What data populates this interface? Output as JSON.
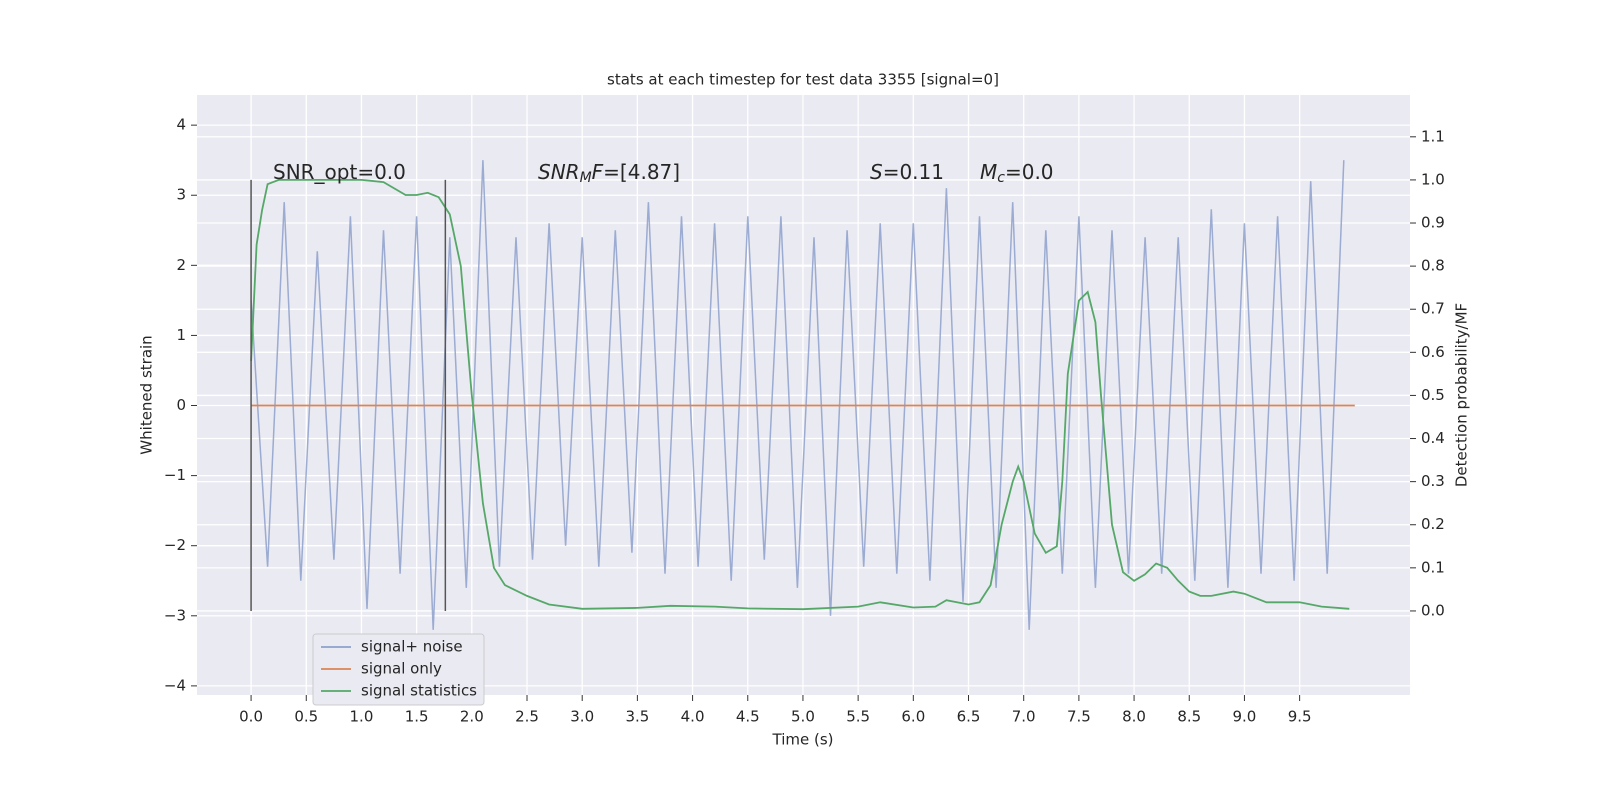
{
  "chart_data": {
    "type": "line",
    "title": "stats at each timestep for test data 3355 [signal=0]",
    "x_label": "Time (s)",
    "y_label": "Whitened strain",
    "y2_label": "Detection probability/MF",
    "xlim": [
      -0.49,
      10.5
    ],
    "ylim": [
      -4.13,
      4.43
    ],
    "y2lim": [
      -0.195,
      1.197
    ],
    "xticks": [
      {
        "value": 0,
        "label": "0.0"
      },
      0.5,
      {
        "value": 1,
        "label": "1.0"
      },
      1.5,
      {
        "value": 2,
        "label": "2.0"
      },
      2.5,
      {
        "value": 3,
        "label": "3.0"
      },
      3.5,
      {
        "value": 4,
        "label": "4.0"
      },
      4.5,
      {
        "value": 5,
        "label": "5.0"
      },
      5.5,
      {
        "value": 6,
        "label": "6.0"
      },
      6.5,
      {
        "value": 7,
        "label": "7.0"
      },
      7.5,
      {
        "value": 8,
        "label": "8.0"
      },
      8.5,
      {
        "value": 9,
        "label": "9.0"
      },
      9.5
    ],
    "yticks": [
      {
        "value": -4,
        "label": "−4"
      },
      {
        "value": -3,
        "label": "−3"
      },
      {
        "value": -2,
        "label": "−2"
      },
      {
        "value": -1,
        "label": "−1"
      },
      0,
      1,
      2,
      3,
      4
    ],
    "y2ticks": [
      {
        "value": 0,
        "label": "0.0"
      },
      0.1,
      0.2,
      0.3,
      0.4,
      0.5,
      0.6,
      0.7,
      0.8,
      0.9,
      {
        "value": 1,
        "label": "1.0"
      },
      1.1
    ],
    "grid": true,
    "legend": "lower left",
    "series": [
      {
        "name": "signal+ noise",
        "color": "#8da0cb",
        "x": [
          0,
          0.15,
          0.3,
          0.45,
          0.6,
          0.75,
          0.9,
          1.05,
          1.2,
          1.35,
          1.5,
          1.65,
          1.8,
          1.95,
          2.1,
          2.25,
          2.4,
          2.55,
          2.7,
          2.85,
          3.0,
          3.15,
          3.3,
          3.45,
          3.6,
          3.75,
          3.9,
          4.05,
          4.2,
          4.35,
          4.5,
          4.65,
          4.8,
          4.95,
          5.1,
          5.25,
          5.4,
          5.55,
          5.7,
          5.85,
          6.0,
          6.15,
          6.3,
          6.45,
          6.6,
          6.75,
          6.9,
          7.05,
          7.2,
          7.35,
          7.5,
          7.65,
          7.8,
          7.95,
          8.1,
          8.25,
          8.4,
          8.55,
          8.7,
          8.85,
          9.0,
          9.15,
          9.3,
          9.45,
          9.6,
          9.75,
          9.9
        ],
        "values": [
          1.5,
          -2.3,
          2.9,
          -2.5,
          2.2,
          -2.2,
          2.7,
          -2.9,
          2.5,
          -2.4,
          2.7,
          -3.2,
          2.4,
          -2.6,
          3.5,
          -2.3,
          2.4,
          -2.2,
          2.6,
          -2.0,
          2.4,
          -2.3,
          2.5,
          -2.1,
          2.9,
          -2.4,
          2.7,
          -2.3,
          2.6,
          -2.5,
          2.7,
          -2.2,
          2.7,
          -2.6,
          2.4,
          -3.0,
          2.5,
          -2.3,
          2.6,
          -2.4,
          2.6,
          -2.5,
          3.1,
          -2.8,
          2.7,
          -2.6,
          2.9,
          -3.2,
          2.5,
          -2.4,
          2.7,
          -2.6,
          2.5,
          -2.4,
          2.4,
          -2.4,
          2.4,
          -2.5,
          2.8,
          -2.6,
          2.6,
          -2.4,
          2.7,
          -2.5,
          3.2,
          -2.4,
          3.5
        ]
      },
      {
        "name": "signal only",
        "color": "#dd8452",
        "x": [
          0,
          10
        ],
        "values": [
          0,
          0
        ]
      },
      {
        "name": "signal statistics",
        "color": "#55a868",
        "axis": "y2",
        "x": [
          0,
          0.05,
          0.1,
          0.15,
          0.25,
          0.5,
          1.0,
          1.2,
          1.4,
          1.5,
          1.6,
          1.7,
          1.8,
          1.9,
          2.0,
          2.1,
          2.2,
          2.3,
          2.5,
          2.7,
          3.0,
          3.5,
          3.8,
          4.2,
          4.5,
          5.0,
          5.5,
          5.7,
          6.0,
          6.2,
          6.3,
          6.5,
          6.6,
          6.7,
          6.8,
          6.9,
          6.95,
          7.0,
          7.1,
          7.2,
          7.3,
          7.35,
          7.4,
          7.5,
          7.58,
          7.65,
          7.7,
          7.8,
          7.9,
          8.0,
          8.1,
          8.2,
          8.3,
          8.4,
          8.5,
          8.6,
          8.7,
          8.9,
          9.0,
          9.2,
          9.5,
          9.7,
          9.95
        ],
        "values": [
          0.58,
          0.85,
          0.93,
          0.99,
          1.0,
          1.0,
          1.0,
          0.995,
          0.965,
          0.965,
          0.97,
          0.96,
          0.92,
          0.8,
          0.5,
          0.25,
          0.1,
          0.06,
          0.035,
          0.015,
          0.005,
          0.007,
          0.012,
          0.01,
          0.006,
          0.004,
          0.01,
          0.02,
          0.008,
          0.01,
          0.025,
          0.015,
          0.02,
          0.06,
          0.2,
          0.3,
          0.335,
          0.3,
          0.18,
          0.135,
          0.15,
          0.3,
          0.55,
          0.72,
          0.74,
          0.67,
          0.5,
          0.2,
          0.09,
          0.07,
          0.085,
          0.11,
          0.1,
          0.07,
          0.045,
          0.035,
          0.035,
          0.045,
          0.04,
          0.02,
          0.02,
          0.01,
          0.005
        ]
      }
    ],
    "markers": {
      "x": [
        0,
        1.76
      ],
      "y2": [
        0,
        1
      ],
      "color": "#555555"
    },
    "annotations": [
      [
        {
          "text": "SNR_opt=0.0"
        }
      ],
      [
        {
          "text": "SNR",
          "style": "italic"
        },
        {
          "text": "M",
          "style": "sub"
        },
        {
          "text": "F",
          "style": "italic"
        },
        {
          "text": "=[4.87]"
        }
      ],
      [
        {
          "text": "S",
          "style": "italic"
        },
        {
          "text": "=0.11"
        }
      ],
      [
        {
          "text": "M",
          "style": "italic"
        },
        {
          "text": "c",
          "style": "sub"
        },
        {
          "text": "=0.0"
        }
      ]
    ]
  }
}
